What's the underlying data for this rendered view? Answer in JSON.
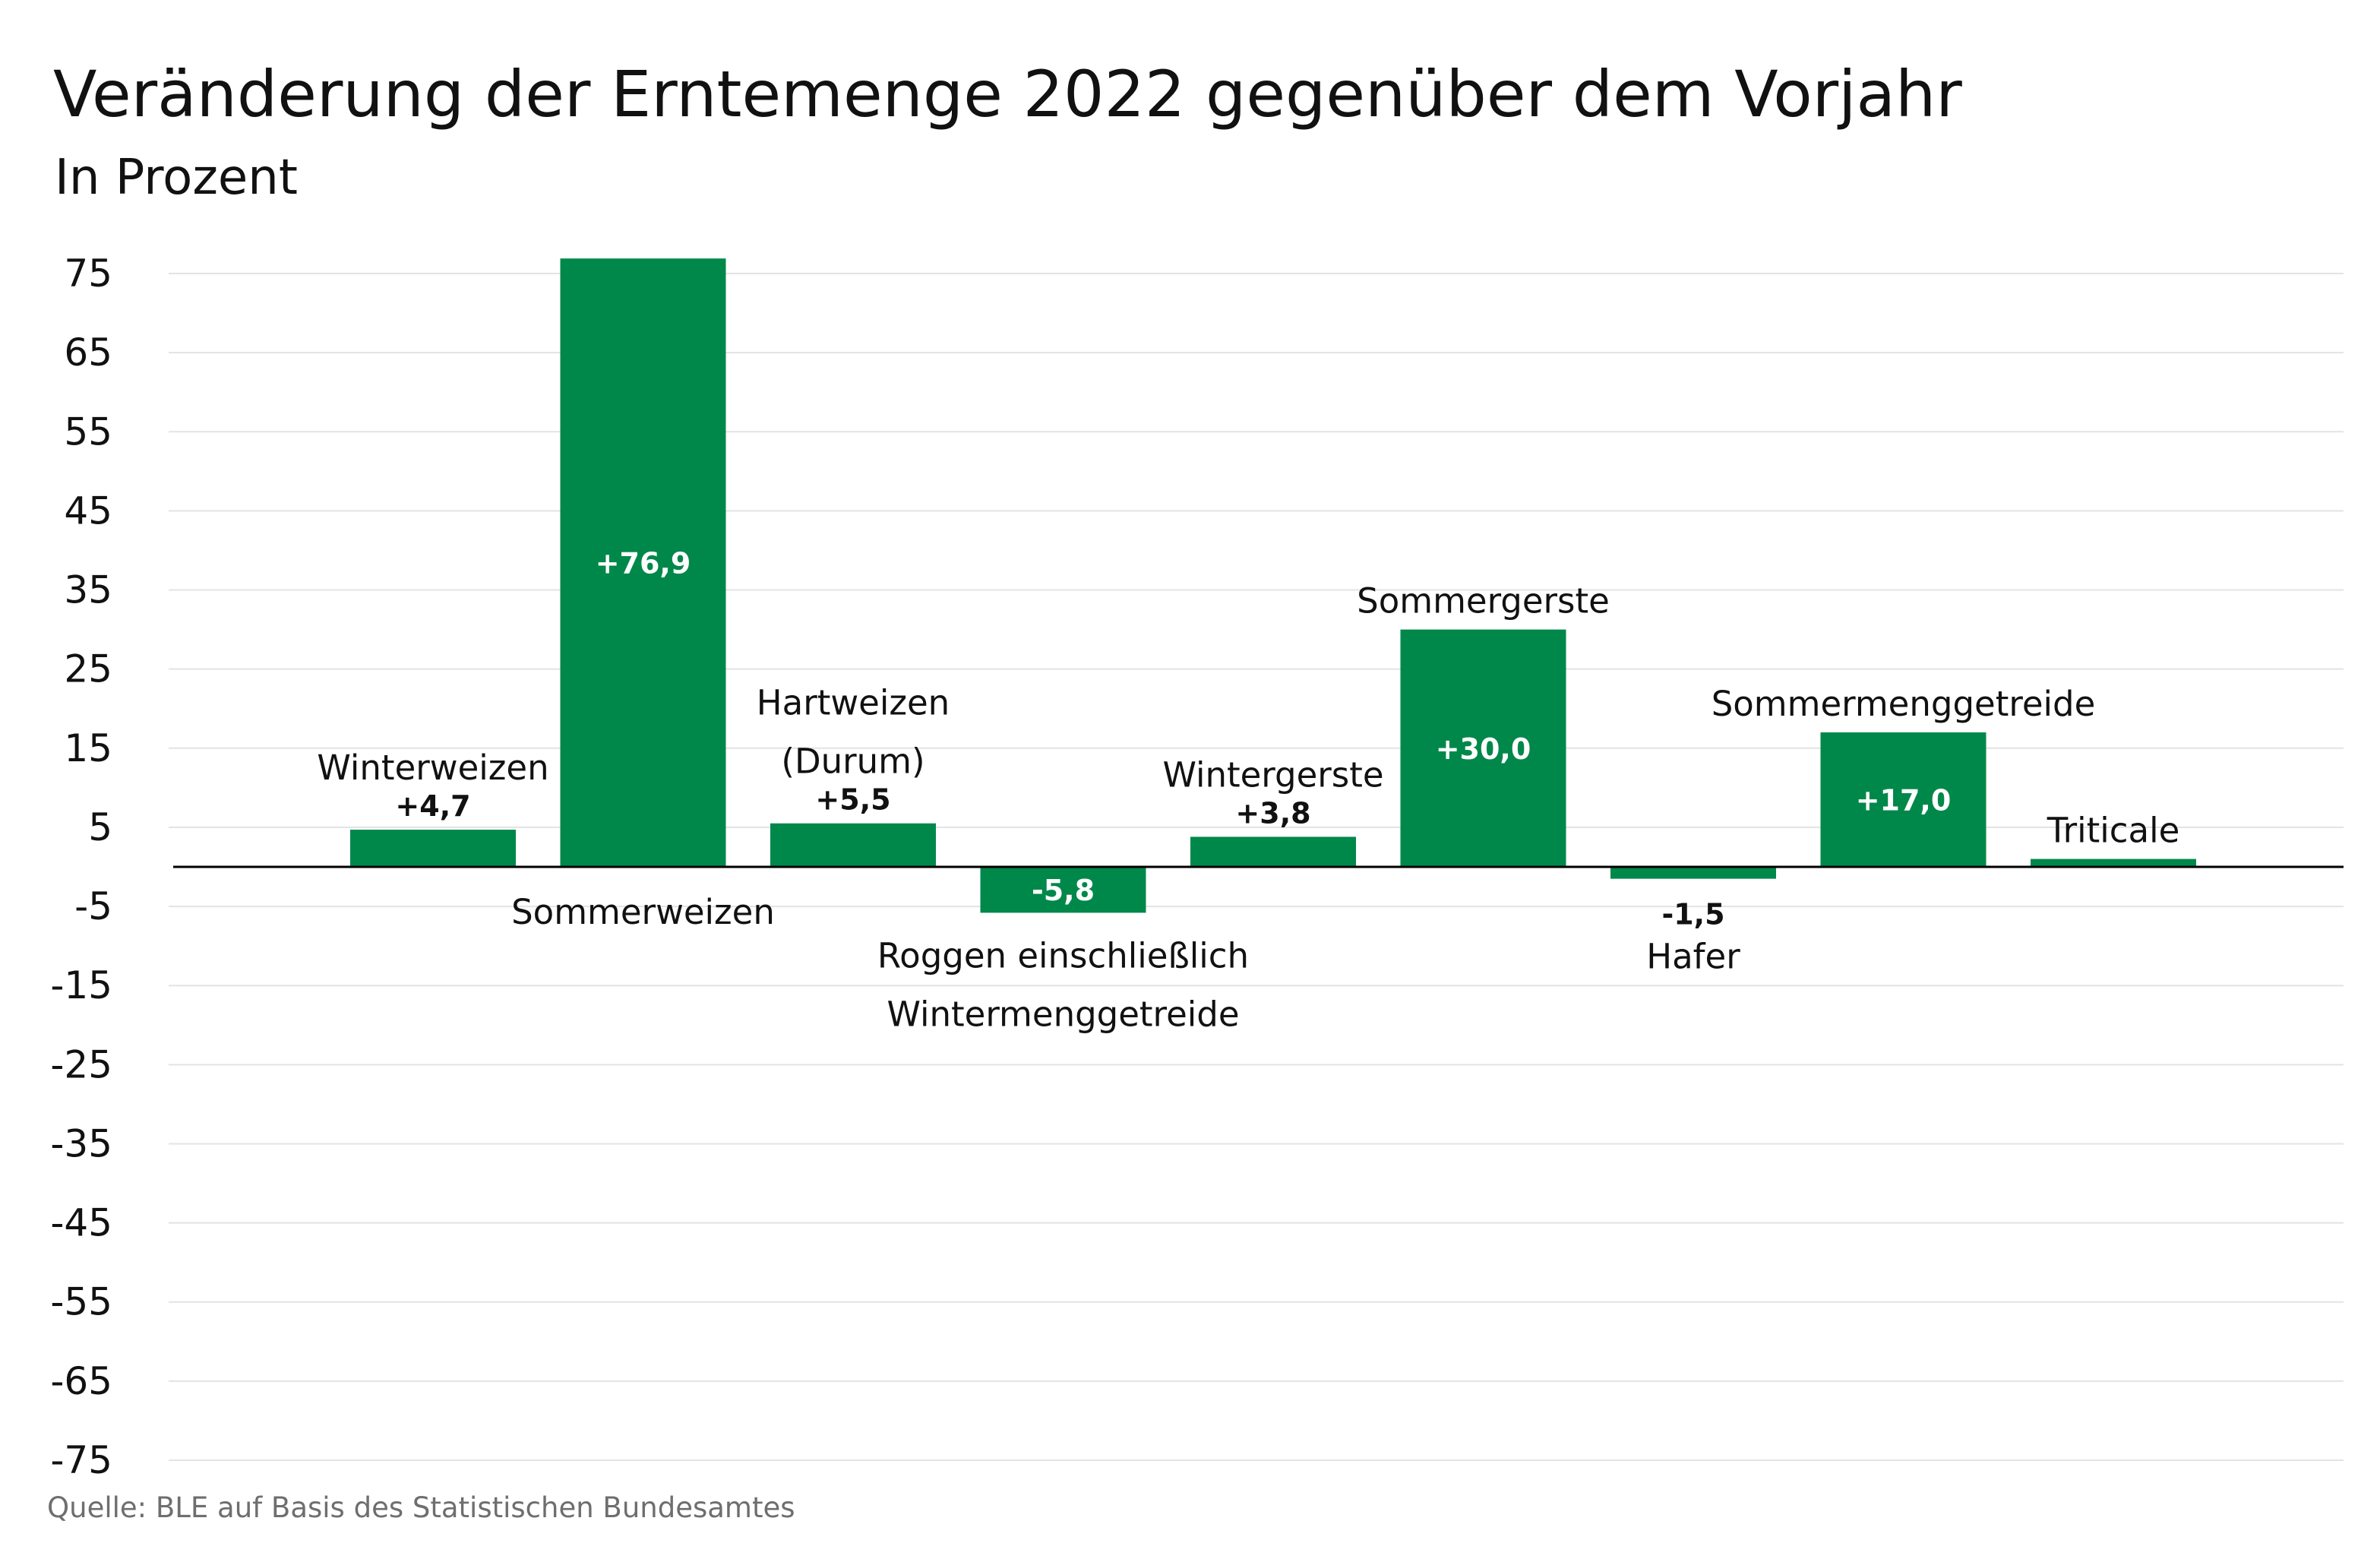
{
  "title": "Veränderung der Erntemenge 2022 gegenüber dem Vorjahr",
  "subtitle": "In Prozent",
  "source": "Quelle: BLE auf Basis des Statistischen Bundesamtes",
  "colors": {
    "bar": "#00884A",
    "axis": "#000000",
    "grid": "#e3e3e3",
    "value_inside": "#ffffff",
    "value_outside": "#111111"
  },
  "chart_data": {
    "type": "bar",
    "categories": [
      [
        "Winterweizen"
      ],
      [
        "Sommerweizen"
      ],
      [
        "Hartweizen",
        "(Durum)"
      ],
      [
        "Roggen einschließlich",
        "Wintermenggetreide"
      ],
      [
        "Wintergerste"
      ],
      [
        "Sommergerste"
      ],
      [
        "Hafer"
      ],
      [
        "Sommermenggetreide"
      ],
      [
        "Triticale"
      ]
    ],
    "values": [
      4.7,
      76.9,
      5.5,
      -5.8,
      3.8,
      30.0,
      -1.5,
      17.0,
      1.0
    ],
    "value_labels": [
      "+4,7",
      "+76,9",
      "+5,5",
      "-5,8",
      "+3,8",
      "+30,0",
      "-1,5",
      "+17,0",
      ""
    ],
    "yticks": [
      75,
      65,
      55,
      45,
      35,
      25,
      15,
      5,
      -5,
      -15,
      -25,
      -35,
      -45,
      -55,
      -65,
      -75
    ],
    "ylim": [
      -75,
      75
    ],
    "grid": true
  }
}
